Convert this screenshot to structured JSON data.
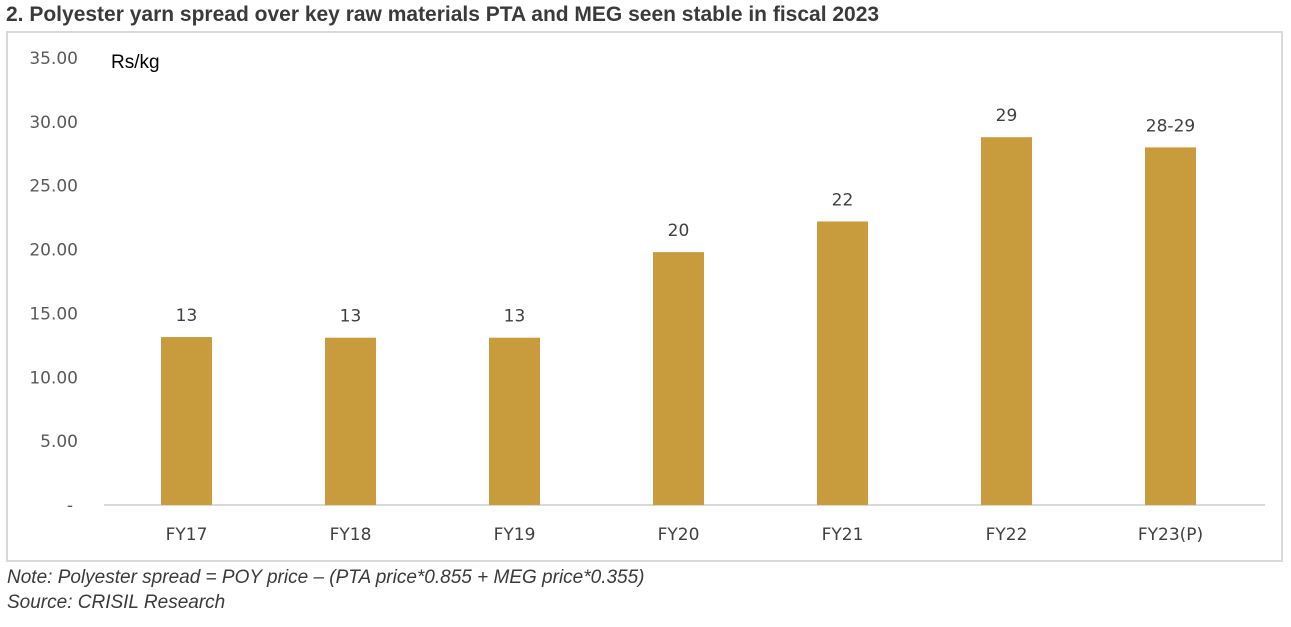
{
  "title": "2.  Polyester yarn spread over key raw materials PTA and MEG seen stable in fiscal 2023",
  "note": "Note: Polyester spread = POY price – (PTA price*0.855 + MEG price*0.355)",
  "source": "Source: CRISIL Research",
  "chart_data": {
    "type": "bar",
    "title": "2.  Polyester yarn spread over key raw materials PTA and MEG seen stable in fiscal 2023",
    "ylabel": "Rs/kg",
    "xlabel": "",
    "categories": [
      "FY17",
      "FY18",
      "FY19",
      "FY20",
      "FY21",
      "FY22",
      "FY23(P)"
    ],
    "values": [
      13.15,
      13.1,
      13.1,
      19.8,
      22.2,
      28.8,
      28.0
    ],
    "data_labels": [
      "13",
      "13",
      "13",
      "20",
      "22",
      "29",
      "28-29"
    ],
    "ylim": [
      0,
      35
    ],
    "yticks": [
      0,
      5,
      10,
      15,
      20,
      25,
      30,
      35
    ],
    "ytick_labels": [
      "-",
      "5.00",
      "10.00",
      "15.00",
      "20.00",
      "25.00",
      "30.00",
      "35.00"
    ],
    "grid": false,
    "legend": "none",
    "bar_color": "#C89B3C"
  }
}
